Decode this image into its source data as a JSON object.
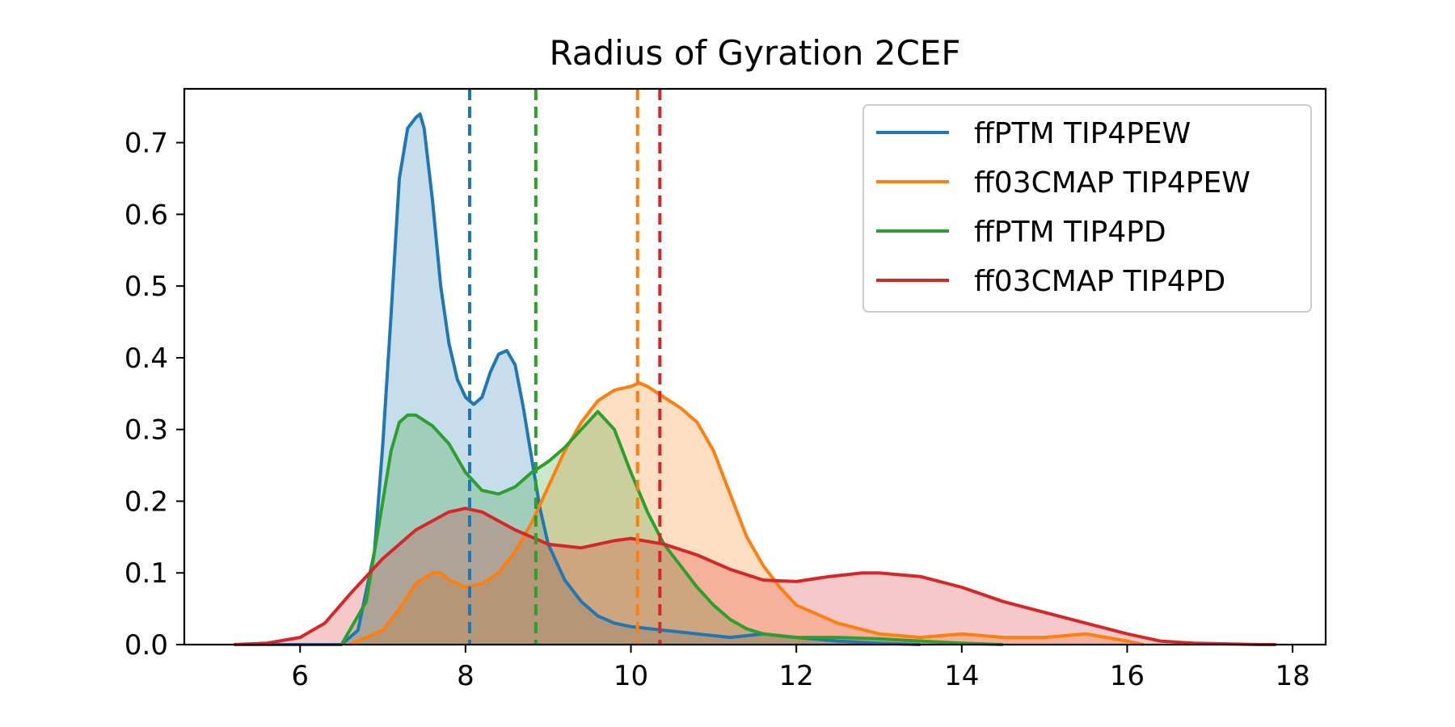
{
  "chart_data": {
    "type": "area",
    "title": "Radius of Gyration 2CEF",
    "xlabel": "",
    "ylabel": "",
    "xlim": [
      4.6,
      18.4
    ],
    "ylim": [
      0,
      0.775
    ],
    "x_ticks": [
      6,
      8,
      10,
      12,
      14,
      16,
      18
    ],
    "y_ticks": [
      0.0,
      0.1,
      0.2,
      0.3,
      0.4,
      0.5,
      0.6,
      0.7
    ],
    "grid": false,
    "legend_position": "top-right",
    "series": [
      {
        "name": "ffPTM TIP4PEW",
        "color": "#1f77b4",
        "mean": 8.05,
        "x": [
          5.2,
          6.5,
          6.7,
          6.9,
          7.0,
          7.1,
          7.2,
          7.3,
          7.4,
          7.45,
          7.5,
          7.6,
          7.7,
          7.8,
          7.9,
          8.0,
          8.1,
          8.2,
          8.3,
          8.4,
          8.5,
          8.6,
          8.7,
          8.8,
          8.9,
          9.0,
          9.2,
          9.4,
          9.6,
          9.8,
          10.0,
          10.4,
          10.8,
          11.2,
          11.6,
          12.0,
          12.5,
          13.0,
          13.5
        ],
        "y": [
          0.0,
          0.0,
          0.02,
          0.13,
          0.28,
          0.46,
          0.65,
          0.72,
          0.735,
          0.74,
          0.72,
          0.62,
          0.5,
          0.42,
          0.37,
          0.345,
          0.335,
          0.345,
          0.38,
          0.405,
          0.41,
          0.39,
          0.33,
          0.26,
          0.19,
          0.14,
          0.09,
          0.06,
          0.04,
          0.03,
          0.025,
          0.02,
          0.015,
          0.01,
          0.015,
          0.01,
          0.005,
          0.002,
          0.0
        ]
      },
      {
        "name": "ff03CMAP TIP4PEW",
        "color": "#ff7f0e",
        "mean": 10.08,
        "x": [
          6.6,
          7.0,
          7.2,
          7.4,
          7.6,
          7.7,
          7.8,
          8.0,
          8.2,
          8.4,
          8.6,
          8.8,
          9.0,
          9.2,
          9.4,
          9.6,
          9.8,
          10.0,
          10.1,
          10.2,
          10.4,
          10.6,
          10.8,
          11.0,
          11.2,
          11.4,
          11.6,
          11.8,
          12.0,
          12.5,
          13.0,
          13.5,
          14.0,
          14.5,
          15.0,
          15.5,
          16.0,
          16.2
        ],
        "y": [
          0.0,
          0.02,
          0.05,
          0.085,
          0.1,
          0.1,
          0.09,
          0.08,
          0.085,
          0.1,
          0.13,
          0.17,
          0.22,
          0.27,
          0.31,
          0.34,
          0.355,
          0.36,
          0.365,
          0.36,
          0.345,
          0.33,
          0.31,
          0.27,
          0.21,
          0.15,
          0.11,
          0.08,
          0.055,
          0.03,
          0.015,
          0.01,
          0.015,
          0.01,
          0.01,
          0.015,
          0.005,
          0.0
        ]
      },
      {
        "name": "ffPTM TIP4PD",
        "color": "#2ca02c",
        "mean": 8.85,
        "x": [
          6.5,
          6.8,
          7.0,
          7.1,
          7.2,
          7.3,
          7.4,
          7.6,
          7.8,
          8.0,
          8.2,
          8.4,
          8.6,
          8.8,
          9.0,
          9.2,
          9.4,
          9.6,
          9.8,
          10.0,
          10.2,
          10.4,
          10.6,
          10.8,
          11.0,
          11.2,
          11.4,
          11.6,
          11.8,
          12.0,
          12.5,
          13.0,
          13.5,
          14.0,
          14.5
        ],
        "y": [
          0.0,
          0.06,
          0.2,
          0.27,
          0.31,
          0.32,
          0.32,
          0.305,
          0.28,
          0.24,
          0.215,
          0.21,
          0.22,
          0.24,
          0.255,
          0.275,
          0.3,
          0.325,
          0.3,
          0.24,
          0.185,
          0.14,
          0.11,
          0.08,
          0.055,
          0.035,
          0.022,
          0.015,
          0.012,
          0.01,
          0.01,
          0.008,
          0.005,
          0.002,
          0.0
        ]
      },
      {
        "name": "ff03CMAP TIP4PD",
        "color": "#d62728",
        "mean": 10.35,
        "x": [
          5.2,
          5.6,
          6.0,
          6.3,
          6.6,
          7.0,
          7.4,
          7.8,
          8.0,
          8.2,
          8.6,
          9.0,
          9.4,
          9.8,
          10.0,
          10.4,
          10.8,
          11.2,
          11.6,
          12.0,
          12.4,
          12.8,
          13.0,
          13.5,
          14.0,
          14.5,
          15.0,
          15.5,
          16.0,
          16.4,
          16.8,
          17.2,
          17.6,
          17.8
        ],
        "y": [
          0.0,
          0.002,
          0.01,
          0.03,
          0.07,
          0.12,
          0.16,
          0.185,
          0.19,
          0.185,
          0.16,
          0.14,
          0.135,
          0.145,
          0.148,
          0.14,
          0.125,
          0.105,
          0.09,
          0.088,
          0.095,
          0.1,
          0.1,
          0.095,
          0.08,
          0.06,
          0.045,
          0.03,
          0.015,
          0.005,
          0.002,
          0.001,
          0.0,
          0.0
        ]
      }
    ]
  }
}
